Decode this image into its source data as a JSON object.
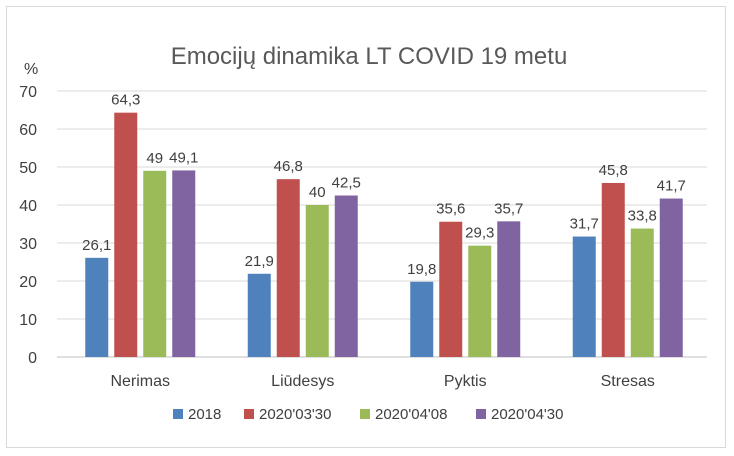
{
  "chart_data": {
    "type": "bar",
    "title": "Emocijų dinamika  LT COVID 19 metu",
    "ylabel": "%",
    "xlabel": "",
    "ylim": [
      0,
      70
    ],
    "yticks": [
      0,
      10,
      20,
      30,
      40,
      50,
      60,
      70
    ],
    "grid": true,
    "legend_position": "bottom",
    "categories": [
      "Nerimas",
      "Liūdesys",
      "Pyktis",
      "Stresas"
    ],
    "series": [
      {
        "name": "2018",
        "color": "#4f81bd",
        "values": [
          26.1,
          21.9,
          19.8,
          31.7
        ],
        "labels": [
          "26,1",
          "21,9",
          "19,8",
          "31,7"
        ]
      },
      {
        "name": "2020'03'30",
        "color": "#c0504d",
        "values": [
          64.3,
          46.8,
          35.6,
          45.8
        ],
        "labels": [
          "64,3",
          "46,8",
          "35,6",
          "45,8"
        ]
      },
      {
        "name": "2020'04'08",
        "color": "#9bbb59",
        "values": [
          49,
          40,
          29.3,
          33.8
        ],
        "labels": [
          "49",
          "40",
          "29,3",
          "33,8"
        ]
      },
      {
        "name": "2020'04'30",
        "color": "#8064a2",
        "values": [
          49.1,
          42.5,
          35.7,
          41.7
        ],
        "labels": [
          "49,1",
          "42,5",
          "35,7",
          "41,7"
        ]
      }
    ]
  }
}
